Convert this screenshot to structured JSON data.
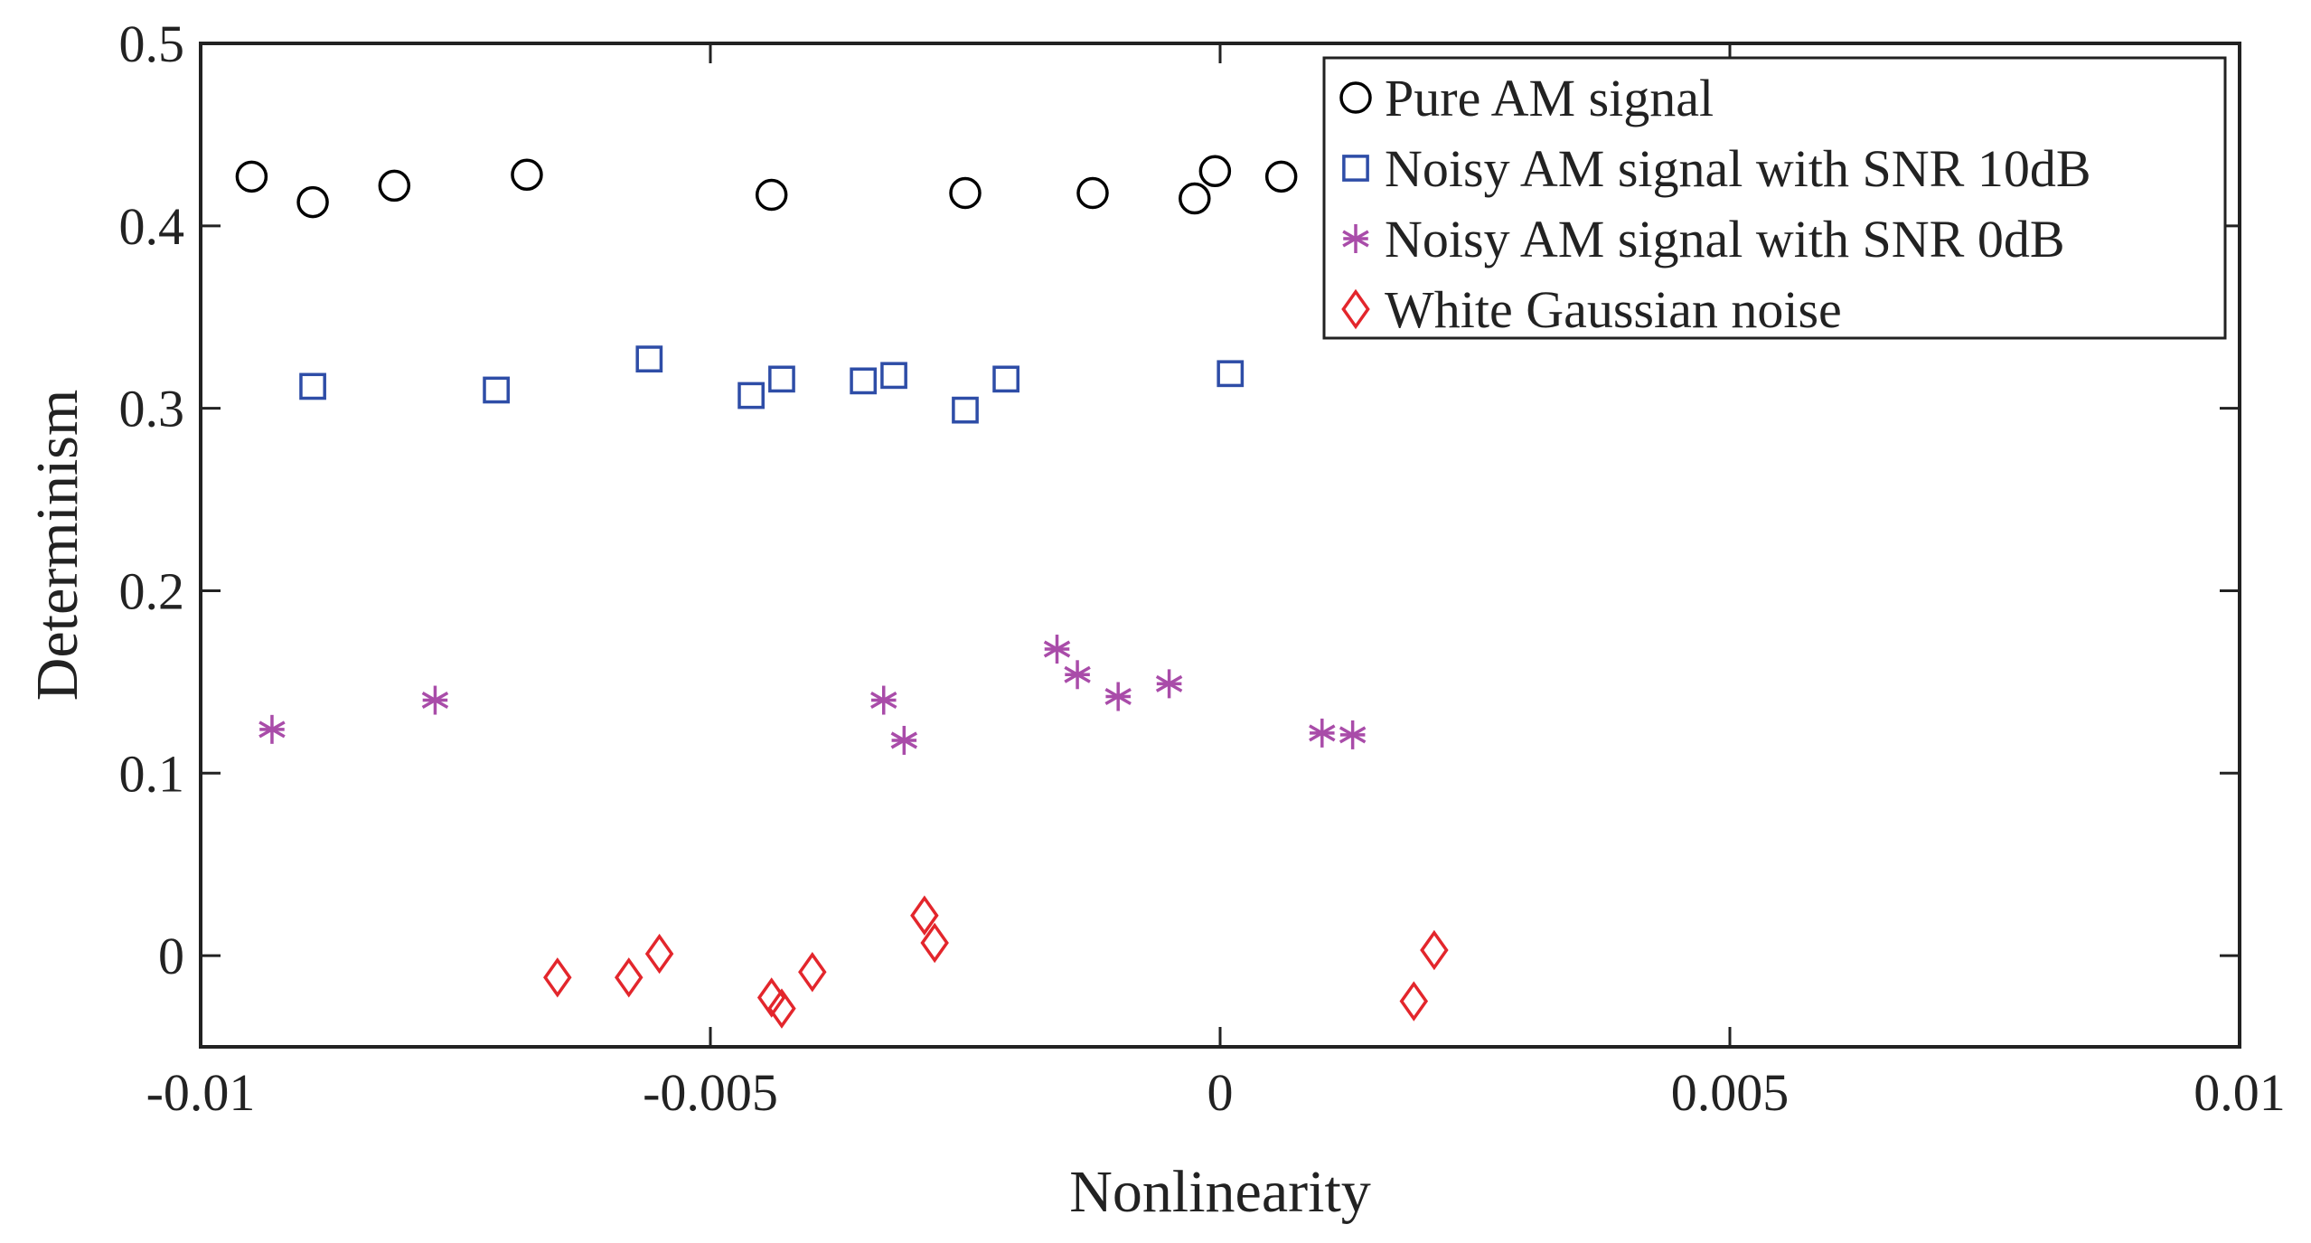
{
  "chart_data": {
    "type": "scatter",
    "title": "",
    "xlabel": "Nonlinearity",
    "ylabel": "Determinism",
    "xlim": [
      -0.01,
      0.01
    ],
    "ylim": [
      -0.05,
      0.5
    ],
    "xticks": [
      -0.01,
      -0.005,
      0,
      0.005,
      0.01
    ],
    "xtick_labels": [
      "-0.01",
      "-0.005",
      "0",
      "0.005",
      "0.01"
    ],
    "yticks": [
      0,
      0.1,
      0.2,
      0.3,
      0.4,
      0.5
    ],
    "ytick_labels": [
      "0",
      "0.1",
      "0.2",
      "0.3",
      "0.4",
      "0.5"
    ],
    "grid": false,
    "legend_position": "top-right",
    "series": [
      {
        "name": "Pure AM signal",
        "marker": "circle",
        "color": "#000000",
        "x": [
          -0.0095,
          -0.0089,
          -0.0081,
          -0.0068,
          -0.0044,
          -0.0025,
          -0.00125,
          -0.00025,
          -5e-05,
          0.0006
        ],
        "y": [
          0.427,
          0.413,
          0.422,
          0.428,
          0.417,
          0.418,
          0.418,
          0.415,
          0.43,
          0.427
        ]
      },
      {
        "name": "Noisy AM signal with SNR 10dB",
        "marker": "square",
        "color": "#2E4DA7",
        "x": [
          -0.0089,
          -0.0071,
          -0.0056,
          -0.0046,
          -0.0043,
          -0.0035,
          -0.0032,
          -0.0025,
          -0.0021,
          0.0001
        ],
        "y": [
          0.312,
          0.31,
          0.327,
          0.307,
          0.316,
          0.315,
          0.318,
          0.299,
          0.316,
          0.319
        ]
      },
      {
        "name": "Noisy AM signal with SNR 0dB",
        "marker": "asterisk",
        "color": "#A94CA9",
        "x": [
          -0.0093,
          -0.0077,
          -0.0033,
          -0.0031,
          -0.0016,
          -0.0014,
          -0.001,
          -0.0005,
          0.001,
          0.0013
        ],
        "y": [
          0.124,
          0.14,
          0.14,
          0.118,
          0.168,
          0.154,
          0.142,
          0.149,
          0.122,
          0.121
        ]
      },
      {
        "name": "White Gaussian noise",
        "marker": "diamond",
        "color": "#E3262C",
        "x": [
          -0.0065,
          -0.0058,
          -0.0055,
          -0.0044,
          -0.0043,
          -0.004,
          -0.0029,
          -0.0028,
          0.0019,
          0.0021
        ],
        "y": [
          -0.012,
          -0.012,
          0.001,
          -0.023,
          -0.029,
          -0.009,
          0.022,
          0.007,
          -0.025,
          0.003
        ]
      }
    ]
  }
}
